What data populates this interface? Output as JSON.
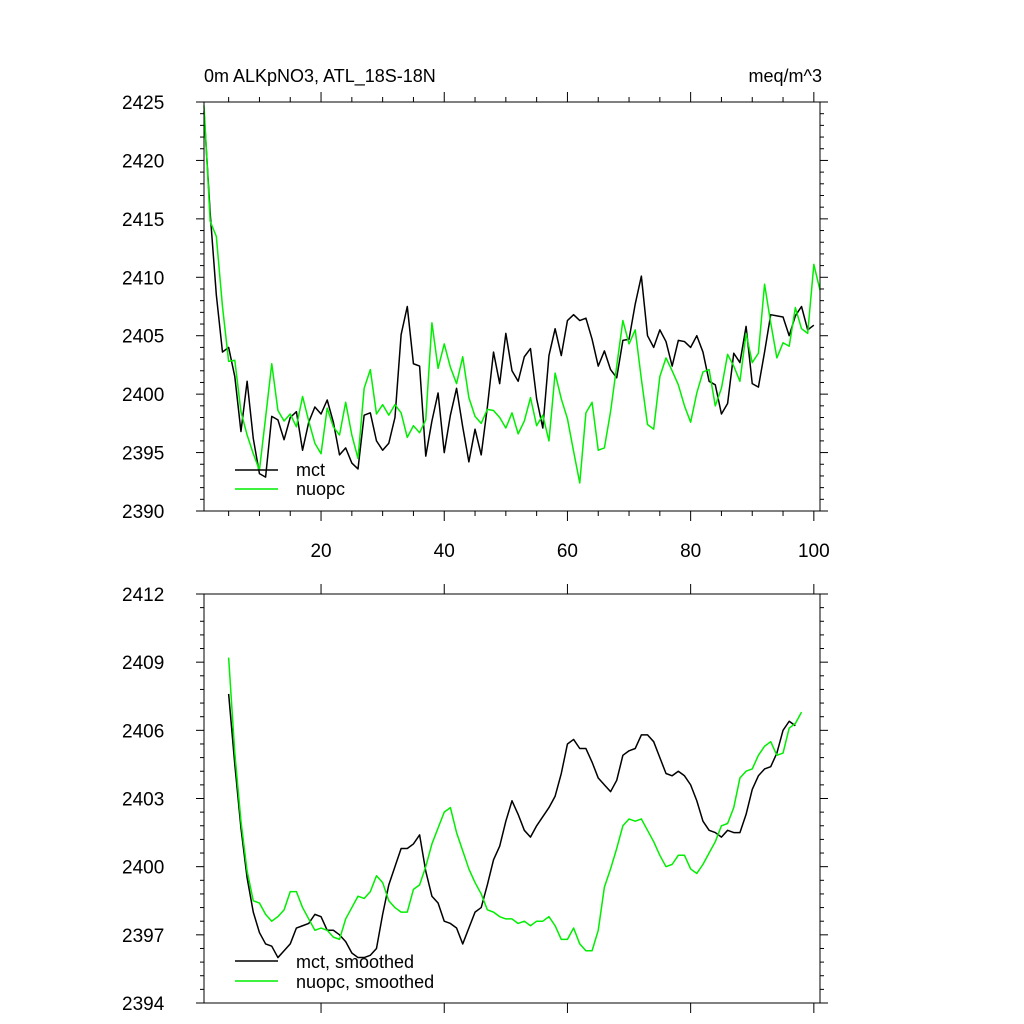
{
  "chart_data": [
    {
      "type": "line",
      "title": "0m ALKpNO3, ATL_18S-18N",
      "units": "meq/m^3",
      "xlim": [
        1,
        101
      ],
      "ylim": [
        2390,
        2425
      ],
      "xticks": [
        20,
        40,
        60,
        80,
        100
      ],
      "xtick_labels": [
        "20",
        "40",
        "60",
        "80",
        "100"
      ],
      "yticks": [
        2390,
        2395,
        2400,
        2405,
        2410,
        2415,
        2420,
        2425
      ],
      "ytick_labels": [
        "2390",
        "2395",
        "2400",
        "2405",
        "2410",
        "2415",
        "2420",
        "2425"
      ],
      "legend_position": "bottom-left",
      "series": [
        {
          "name": "mct",
          "color": "#000000",
          "x": [
            1,
            2,
            3,
            4,
            5,
            6,
            7,
            8,
            9,
            10,
            11,
            12,
            13,
            14,
            15,
            16,
            17,
            18,
            19,
            20,
            21,
            22,
            23,
            24,
            25,
            26,
            27,
            28,
            29,
            30,
            31,
            32,
            33,
            34,
            35,
            36,
            37,
            38,
            39,
            40,
            41,
            42,
            43,
            44,
            45,
            46,
            47,
            48,
            49,
            50,
            51,
            52,
            53,
            54,
            55,
            56,
            57,
            58,
            59,
            60,
            61,
            62,
            63,
            64,
            65,
            66,
            67,
            68,
            69,
            70,
            71,
            72,
            73,
            74,
            75,
            76,
            77,
            78,
            79,
            80,
            81,
            82,
            83,
            84,
            85,
            86,
            87,
            88,
            89,
            90,
            91,
            92,
            93,
            94,
            95,
            96,
            97,
            98,
            99,
            100
          ],
          "values": [
            2424.2,
            2415.5,
            2408.5,
            2403.6,
            2404,
            2401.5,
            2396.8,
            2401.1,
            2396.2,
            2393.2,
            2392.9,
            2398.1,
            2397.8,
            2396.1,
            2398,
            2398.5,
            2395.2,
            2397.6,
            2398.9,
            2398.3,
            2399.5,
            2397.6,
            2394.8,
            2395.4,
            2394.1,
            2393.6,
            2398.2,
            2398.4,
            2396,
            2395.2,
            2395.8,
            2398,
            2405.1,
            2407.5,
            2402.6,
            2402.4,
            2394.7,
            2397.7,
            2400.1,
            2395,
            2398.2,
            2400.5,
            2397.2,
            2394.2,
            2397,
            2394.8,
            2398.9,
            2403.6,
            2400.9,
            2405.2,
            2402,
            2401.1,
            2403.2,
            2403.9,
            2399.6,
            2397.1,
            2403.3,
            2405.6,
            2403.3,
            2406.3,
            2406.8,
            2406.3,
            2406.5,
            2404.7,
            2402.4,
            2403.7,
            2402.1,
            2401.4,
            2404.6,
            2404.7,
            2407.7,
            2410.1,
            2405,
            2404,
            2405.5,
            2404.5,
            2402.4,
            2404.6,
            2404.5,
            2404,
            2405,
            2403.6,
            2401.1,
            2400.8,
            2398.3,
            2399.2,
            2403.5,
            2402.7,
            2405.8,
            2400.9,
            2400.6,
            2403.6,
            2406.8,
            2406.7,
            2406.6,
            2405,
            2406.7,
            2407.5,
            2405.5,
            2405.9
          ]
        },
        {
          "name": "nuopc",
          "color": "#00ee00",
          "x": [
            1,
            2,
            3,
            4,
            5,
            6,
            7,
            8,
            9,
            10,
            11,
            12,
            13,
            14,
            15,
            16,
            17,
            18,
            19,
            20,
            21,
            22,
            23,
            24,
            25,
            26,
            27,
            28,
            29,
            30,
            31,
            32,
            33,
            34,
            35,
            36,
            37,
            38,
            39,
            40,
            41,
            42,
            43,
            44,
            45,
            46,
            47,
            48,
            49,
            50,
            51,
            52,
            53,
            54,
            55,
            56,
            57,
            58,
            59,
            60,
            61,
            62,
            63,
            64,
            65,
            66,
            67,
            68,
            69,
            70,
            71,
            72,
            73,
            74,
            75,
            76,
            77,
            78,
            79,
            80,
            81,
            82,
            83,
            84,
            85,
            86,
            87,
            88,
            89,
            90,
            91,
            92,
            93,
            94,
            95,
            96,
            97,
            98,
            99,
            100,
            101
          ],
          "values": [
            2424.7,
            2414.8,
            2413.5,
            2407.5,
            2402.8,
            2402.9,
            2398.5,
            2396.5,
            2394.9,
            2393.5,
            2398,
            2402.6,
            2398.6,
            2397.7,
            2398.3,
            2397.2,
            2399.8,
            2397.7,
            2395.8,
            2394.9,
            2398.8,
            2397.2,
            2396.5,
            2399.3,
            2396.5,
            2394.5,
            2400.5,
            2402.1,
            2398.3,
            2399.1,
            2398.2,
            2399.1,
            2398.4,
            2396.3,
            2397.3,
            2396.7,
            2397.8,
            2406.1,
            2402.2,
            2404.3,
            2402.3,
            2400.9,
            2403.2,
            2399.7,
            2398.1,
            2397.5,
            2398.7,
            2398.6,
            2398,
            2397.1,
            2398.4,
            2396.6,
            2397.7,
            2399.7,
            2397.3,
            2398.2,
            2396,
            2401.8,
            2399.6,
            2397.9,
            2395.1,
            2392.4,
            2398.4,
            2399.3,
            2395.2,
            2395.4,
            2398.5,
            2402.4,
            2406.3,
            2404.3,
            2405.5,
            2401.3,
            2397.4,
            2397,
            2401.5,
            2403.1,
            2402,
            2400.8,
            2399,
            2397.6,
            2400.1,
            2401.9,
            2402.1,
            2399,
            2400.5,
            2403.4,
            2402.4,
            2401.1,
            2405.2,
            2402.7,
            2403.5,
            2409.4,
            2406.1,
            2403.1,
            2404.4,
            2404.1,
            2407.4,
            2405.6,
            2405.2,
            2411.1,
            2408.9
          ]
        }
      ]
    },
    {
      "type": "line",
      "title": "",
      "xlim": [
        1,
        101
      ],
      "ylim": [
        2394,
        2412
      ],
      "xticks": [
        20,
        40,
        60,
        80,
        100
      ],
      "yticks": [
        2394,
        2397,
        2400,
        2403,
        2406,
        2409,
        2412
      ],
      "ytick_labels": [
        "2394",
        "2397",
        "2400",
        "2403",
        "2406",
        "2409",
        "2412"
      ],
      "legend_position": "bottom-left",
      "series": [
        {
          "name": "mct, smoothed",
          "color": "#000000",
          "x": [
            5,
            6,
            7,
            8,
            9,
            10,
            11,
            12,
            13,
            14,
            15,
            16,
            17,
            18,
            19,
            20,
            21,
            22,
            23,
            24,
            25,
            26,
            27,
            28,
            29,
            30,
            31,
            32,
            33,
            34,
            35,
            36,
            37,
            38,
            39,
            40,
            41,
            42,
            43,
            44,
            45,
            46,
            47,
            48,
            49,
            50,
            51,
            52,
            53,
            54,
            55,
            56,
            57,
            58,
            59,
            60,
            61,
            62,
            63,
            64,
            65,
            66,
            67,
            68,
            69,
            70,
            71,
            72,
            73,
            74,
            75,
            76,
            77,
            78,
            79,
            80,
            81,
            82,
            83,
            84,
            85,
            86,
            87,
            88,
            89,
            90,
            91,
            92,
            93,
            94,
            95,
            96,
            97
          ],
          "values": [
            2407.6,
            2404.5,
            2401.7,
            2399.5,
            2398,
            2397.1,
            2396.6,
            2396.5,
            2396,
            2396.3,
            2396.6,
            2397.3,
            2397.4,
            2397.5,
            2397.9,
            2397.8,
            2397.2,
            2397.2,
            2397,
            2396.7,
            2396.2,
            2396,
            2396,
            2396.1,
            2396.4,
            2397.9,
            2399.2,
            2400,
            2400.8,
            2400.8,
            2401,
            2401.4,
            2399.8,
            2398.7,
            2398.4,
            2397.6,
            2397.5,
            2397.3,
            2396.6,
            2397.3,
            2398,
            2398.2,
            2399.2,
            2400.3,
            2400.9,
            2402,
            2402.9,
            2402.3,
            2401.6,
            2401.3,
            2401.8,
            2402.2,
            2402.6,
            2403.1,
            2404.1,
            2405.4,
            2405.6,
            2405.2,
            2405.2,
            2404.6,
            2403.9,
            2403.6,
            2403.3,
            2403.8,
            2404.9,
            2405.1,
            2405.2,
            2405.8,
            2405.8,
            2405.5,
            2404.8,
            2404.1,
            2404,
            2404.2,
            2404,
            2403.6,
            2402.9,
            2402,
            2401.6,
            2401.5,
            2401.3,
            2401.6,
            2401.5,
            2401.5,
            2402.3,
            2403.4,
            2404,
            2404.3,
            2404.4,
            2405,
            2406,
            2406.4,
            2406.2
          ]
        },
        {
          "name": "nuopc, smoothed",
          "color": "#00ee00",
          "x": [
            5,
            6,
            7,
            8,
            9,
            10,
            11,
            12,
            13,
            14,
            15,
            16,
            17,
            18,
            19,
            20,
            21,
            22,
            23,
            24,
            25,
            26,
            27,
            28,
            29,
            30,
            31,
            32,
            33,
            34,
            35,
            36,
            37,
            38,
            39,
            40,
            41,
            42,
            43,
            44,
            45,
            46,
            47,
            48,
            49,
            50,
            51,
            52,
            53,
            54,
            55,
            56,
            57,
            58,
            59,
            60,
            61,
            62,
            63,
            64,
            65,
            66,
            67,
            68,
            69,
            70,
            71,
            72,
            73,
            74,
            75,
            76,
            77,
            78,
            79,
            80,
            81,
            82,
            83,
            84,
            85,
            86,
            87,
            88,
            89,
            90,
            91,
            92,
            93,
            94,
            95,
            96,
            97,
            98
          ],
          "values": [
            2409.2,
            2405,
            2402,
            2399.8,
            2398.5,
            2398.4,
            2397.9,
            2397.6,
            2397.8,
            2398.1,
            2398.9,
            2398.9,
            2398.2,
            2397.7,
            2397.2,
            2397.3,
            2397.2,
            2396.9,
            2396.8,
            2397.7,
            2398.2,
            2398.7,
            2398.6,
            2398.9,
            2399.6,
            2399.3,
            2398.5,
            2398.2,
            2398,
            2398,
            2399,
            2399.2,
            2400,
            2401,
            2401.7,
            2402.4,
            2402.6,
            2401.5,
            2400.7,
            2399.9,
            2399.3,
            2398.8,
            2398.1,
            2398,
            2397.8,
            2397.7,
            2397.7,
            2397.5,
            2397.6,
            2397.4,
            2397.6,
            2397.6,
            2397.8,
            2397.4,
            2396.8,
            2396.8,
            2397.3,
            2396.6,
            2396.3,
            2396.3,
            2397.2,
            2399.1,
            2399.9,
            2400.8,
            2401.8,
            2402.1,
            2402,
            2402.1,
            2401.6,
            2401.1,
            2400.5,
            2400,
            2400.1,
            2400.5,
            2400.5,
            2399.9,
            2399.7,
            2400.1,
            2400.6,
            2401.1,
            2401.8,
            2401.9,
            2402.6,
            2403.9,
            2404.2,
            2404.3,
            2404.9,
            2405.3,
            2405.5,
            2404.9,
            2405,
            2406.1,
            2406.3,
            2406.8
          ]
        }
      ]
    }
  ]
}
